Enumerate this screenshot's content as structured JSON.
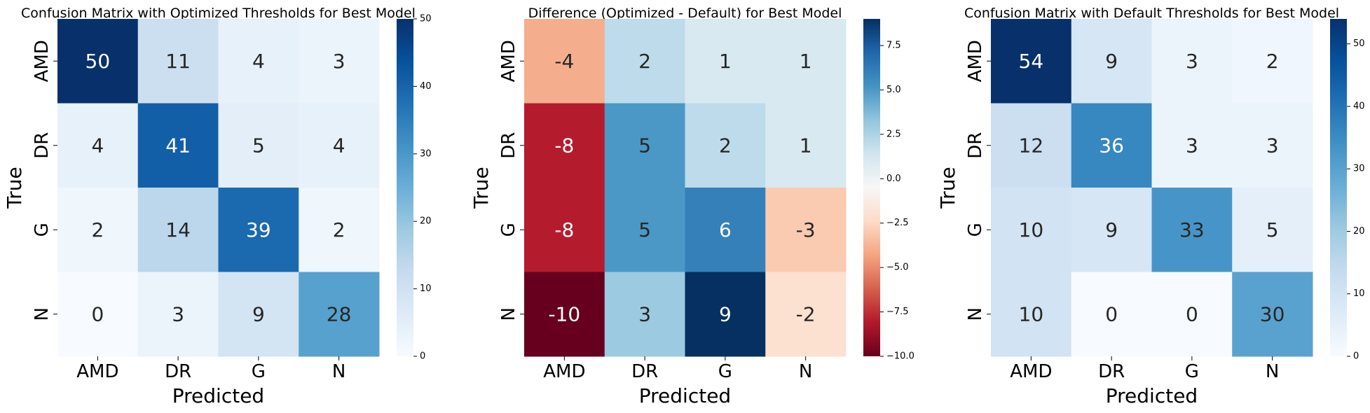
{
  "chart_data": [
    {
      "type": "heatmap",
      "title": "Confusion Matrix with Optimized Thresholds for Best Model",
      "xlabel": "Predicted",
      "ylabel": "True",
      "x_categories": [
        "AMD",
        "DR",
        "G",
        "N"
      ],
      "y_categories": [
        "AMD",
        "DR",
        "G",
        "N"
      ],
      "values": [
        [
          50,
          11,
          4,
          3
        ],
        [
          4,
          41,
          5,
          4
        ],
        [
          2,
          14,
          39,
          2
        ],
        [
          0,
          3,
          9,
          28
        ]
      ],
      "colormap": "Blues",
      "vmin": 0,
      "vmax": 50,
      "colorbar_ticks": [
        "0",
        "10",
        "20",
        "30",
        "40",
        "50"
      ]
    },
    {
      "type": "heatmap",
      "title": "Difference (Optimized - Default) for Best Model",
      "xlabel": "Predicted",
      "ylabel": "True",
      "x_categories": [
        "AMD",
        "DR",
        "G",
        "N"
      ],
      "y_categories": [
        "AMD",
        "DR",
        "G",
        "N"
      ],
      "values": [
        [
          -4,
          2,
          1,
          1
        ],
        [
          -8,
          5,
          2,
          1
        ],
        [
          -8,
          5,
          6,
          -3
        ],
        [
          -10,
          3,
          9,
          -2
        ]
      ],
      "colormap": "RdBu",
      "vmin": -10,
      "vmax": 9,
      "colorbar_ticks": [
        "−10.0",
        "−7.5",
        "−5.0",
        "−2.5",
        "0.0",
        "2.5",
        "5.0",
        "7.5"
      ]
    },
    {
      "type": "heatmap",
      "title": "Confusion Matrix with Default Thresholds for Best Model",
      "xlabel": "Predicted",
      "ylabel": "True",
      "x_categories": [
        "AMD",
        "DR",
        "G",
        "N"
      ],
      "y_categories": [
        "AMD",
        "DR",
        "G",
        "N"
      ],
      "values": [
        [
          54,
          9,
          3,
          2
        ],
        [
          12,
          36,
          3,
          3
        ],
        [
          10,
          9,
          33,
          5
        ],
        [
          10,
          0,
          0,
          30
        ]
      ],
      "colormap": "Blues",
      "vmin": 0,
      "vmax": 54,
      "colorbar_ticks": [
        "0",
        "10",
        "20",
        "30",
        "40",
        "50"
      ]
    }
  ]
}
